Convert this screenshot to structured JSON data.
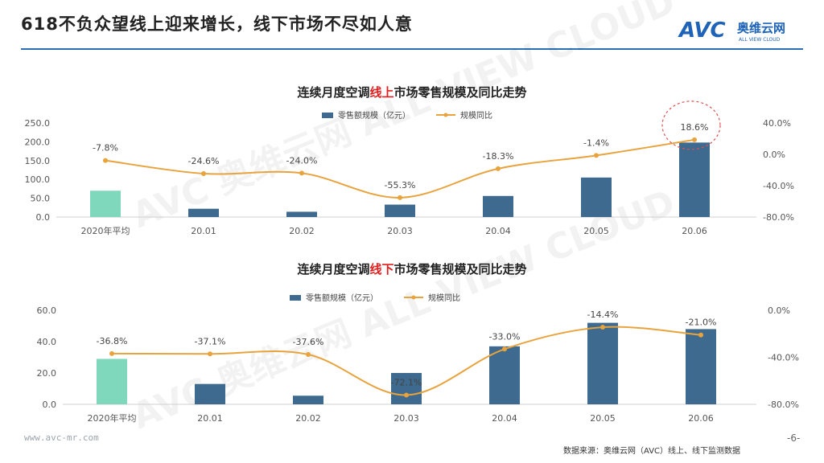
{
  "header": {
    "title": "618不负众望线上迎来增长，线下市场不尽如人意",
    "logo_text": "AVC",
    "logo_cn": "奥维云网",
    "logo_sub": "ALL VIEW CLOUD"
  },
  "footer": {
    "url": "www.avc-mr.com",
    "source": "数据来源：奥维云网（AVC）线上、线下监测数据",
    "page": "-6-"
  },
  "watermark": {
    "text": "AVC 奥维云网 ALL VIEW CLOUD"
  },
  "colors": {
    "bar": "#3d6a8e",
    "bar_highlight": "#7fd8bb",
    "line": "#e8a33d",
    "title_accent": "#e02020",
    "circle": "#e05050"
  },
  "chart_data": [
    {
      "type": "bar",
      "title_parts": [
        "连续月度空调",
        "线上",
        "市场零售规模及同比走势"
      ],
      "categories": [
        "2020年平均",
        "20.01",
        "20.02",
        "20.03",
        "20.04",
        "20.05",
        "20.06"
      ],
      "series": [
        {
          "name": "零售额规模（亿元）",
          "type": "bar",
          "axis": "left",
          "values": [
            70,
            22,
            14,
            33,
            56,
            105,
            198
          ]
        },
        {
          "name": "规模同比",
          "type": "line",
          "axis": "right",
          "values": [
            -7.8,
            -24.6,
            -24.0,
            -55.3,
            -18.3,
            -1.4,
            18.6
          ],
          "labels": [
            "-7.8%",
            "-24.6%",
            "-24.0%",
            "-55.3%",
            "-18.3%",
            "-1.4%",
            "18.6%"
          ]
        }
      ],
      "ylim_left": [
        0,
        250
      ],
      "yticks_left": [
        "0.0",
        "50.0",
        "100.0",
        "150.0",
        "200.0",
        "250.0"
      ],
      "ylim_right": [
        -80,
        40
      ],
      "yticks_right": [
        "-80.0%",
        "-40.0%",
        "0.0%",
        "40.0%"
      ],
      "grid": false,
      "legend": "top-center"
    },
    {
      "type": "bar",
      "title_parts": [
        "连续月度空调",
        "线下",
        "市场零售规模及同比走势"
      ],
      "categories": [
        "2020年平均",
        "20.01",
        "20.02",
        "20.03",
        "20.04",
        "20.05",
        "20.06"
      ],
      "series": [
        {
          "name": "零售额规模（亿元）",
          "type": "bar",
          "axis": "left",
          "values": [
            29,
            13,
            5.5,
            20,
            37,
            52,
            48
          ]
        },
        {
          "name": "规模同比",
          "type": "line",
          "axis": "right",
          "values": [
            -36.8,
            -37.1,
            -37.6,
            -72.1,
            -33.0,
            -14.4,
            -21.0
          ],
          "labels": [
            "-36.8%",
            "-37.1%",
            "-37.6%",
            "-72.1%",
            "-33.0%",
            "-14.4%",
            "-21.0%"
          ]
        }
      ],
      "ylim_left": [
        0,
        60
      ],
      "yticks_left": [
        "0.0",
        "20.0",
        "40.0",
        "60.0"
      ],
      "ylim_right": [
        -80,
        0
      ],
      "yticks_right": [
        "-80.0%",
        "-40.0%",
        "0.0%"
      ],
      "grid": false,
      "legend": "top-center"
    }
  ]
}
